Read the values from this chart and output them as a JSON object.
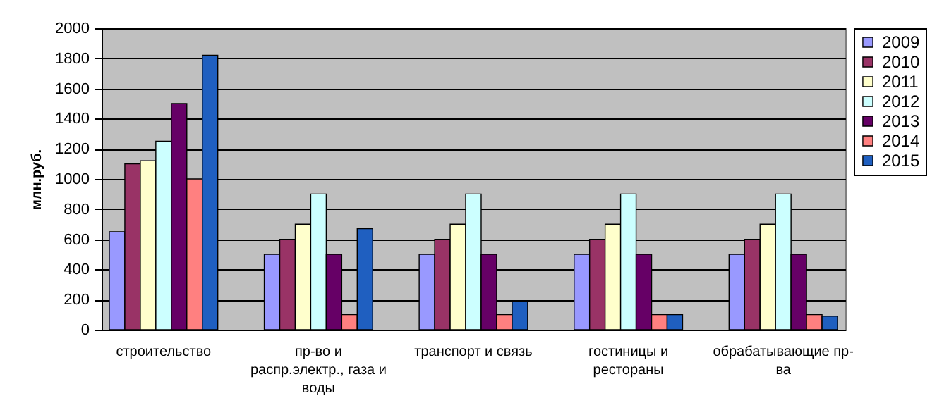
{
  "chart_data": {
    "type": "bar",
    "ylabel": "млн.руб.",
    "categories": [
      "строительство",
      "пр-во и распр.электр., газа и воды",
      "транспорт и связь",
      "гостиницы и рестораны",
      "обрабатывающие пр-ва"
    ],
    "series": [
      {
        "name": "2009",
        "color": "#9999ff",
        "values": [
          650,
          500,
          500,
          500,
          500
        ]
      },
      {
        "name": "2010",
        "color": "#993366",
        "values": [
          1100,
          600,
          600,
          600,
          600
        ]
      },
      {
        "name": "2011",
        "color": "#ffffcc",
        "values": [
          1120,
          700,
          700,
          700,
          700
        ]
      },
      {
        "name": "2012",
        "color": "#ccffff",
        "values": [
          1250,
          900,
          900,
          900,
          900
        ]
      },
      {
        "name": "2013",
        "color": "#660066",
        "values": [
          1500,
          500,
          500,
          500,
          500
        ]
      },
      {
        "name": "2014",
        "color": "#ff8080",
        "values": [
          1000,
          100,
          100,
          100,
          100
        ]
      },
      {
        "name": "2015",
        "color": "#1f5fc0",
        "values": [
          1820,
          670,
          190,
          100,
          90
        ]
      }
    ],
    "ylim": [
      0,
      2000
    ],
    "yticks": [
      0,
      200,
      400,
      600,
      800,
      1000,
      1200,
      1400,
      1600,
      1800,
      2000
    ],
    "grid": "y",
    "legend": "right"
  }
}
